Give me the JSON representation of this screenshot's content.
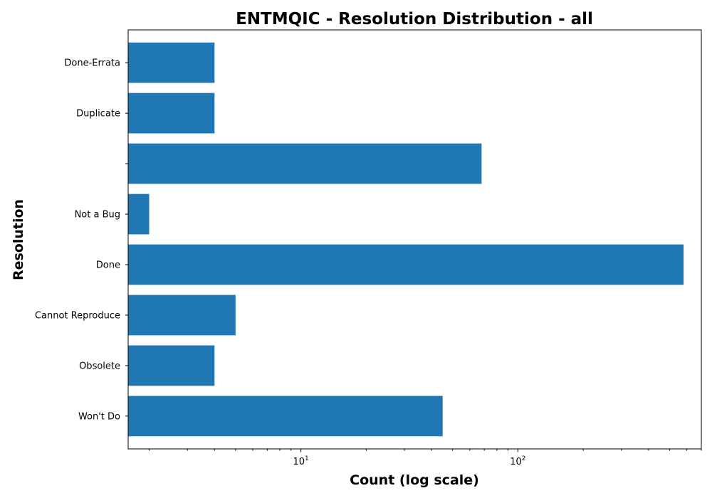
{
  "chart_data": {
    "type": "bar",
    "orientation": "horizontal",
    "title": "ENTMQIC - Resolution Distribution - all",
    "xlabel": "Count (log scale)",
    "ylabel": "Resolution",
    "xscale": "log",
    "xlim": [
      1.6,
      700
    ],
    "xticks": [
      {
        "base": "10",
        "exp": "1",
        "value": 10
      },
      {
        "base": "10",
        "exp": "2",
        "value": 100
      }
    ],
    "categories": [
      "Won't Do",
      "Obsolete",
      "Cannot Reproduce",
      "Done",
      "Not a Bug",
      "",
      "Duplicate",
      "Done-Errata"
    ],
    "values": [
      45,
      4,
      5,
      580,
      2,
      68,
      4,
      4
    ],
    "color": "#1f77b4",
    "grid": false,
    "legend": "none"
  }
}
